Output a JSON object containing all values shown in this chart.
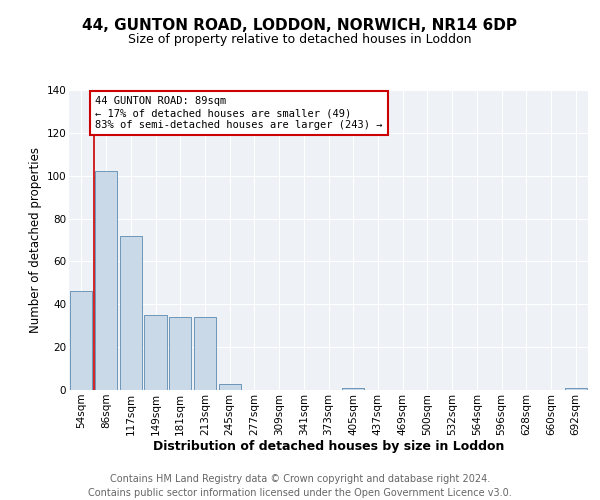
{
  "title": "44, GUNTON ROAD, LODDON, NORWICH, NR14 6DP",
  "subtitle": "Size of property relative to detached houses in Loddon",
  "xlabel": "Distribution of detached houses by size in Loddon",
  "ylabel": "Number of detached properties",
  "footer_line1": "Contains HM Land Registry data © Crown copyright and database right 2024.",
  "footer_line2": "Contains public sector information licensed under the Open Government Licence v3.0.",
  "categories": [
    "54sqm",
    "86sqm",
    "117sqm",
    "149sqm",
    "181sqm",
    "213sqm",
    "245sqm",
    "277sqm",
    "309sqm",
    "341sqm",
    "373sqm",
    "405sqm",
    "437sqm",
    "469sqm",
    "500sqm",
    "532sqm",
    "564sqm",
    "596sqm",
    "628sqm",
    "660sqm",
    "692sqm"
  ],
  "values": [
    46,
    102,
    72,
    35,
    34,
    34,
    3,
    0,
    0,
    0,
    0,
    1,
    0,
    0,
    0,
    0,
    0,
    0,
    0,
    0,
    1
  ],
  "bar_color": "#c9d9e8",
  "bar_edge_color": "#5a8ab0",
  "highlight_line_color": "#cc0000",
  "annotation_box_color": "#cc0000",
  "annotation_line1": "44 GUNTON ROAD: 89sqm",
  "annotation_line2": "← 17% of detached houses are smaller (49)",
  "annotation_line3": "83% of semi-detached houses are larger (243) →",
  "ylim": [
    0,
    140
  ],
  "yticks": [
    0,
    20,
    40,
    60,
    80,
    100,
    120,
    140
  ],
  "background_color": "#eef2f7",
  "grid_color": "#ffffff",
  "title_fontsize": 11,
  "subtitle_fontsize": 9,
  "axis_label_fontsize": 8.5,
  "tick_fontsize": 7.5,
  "footer_fontsize": 7
}
